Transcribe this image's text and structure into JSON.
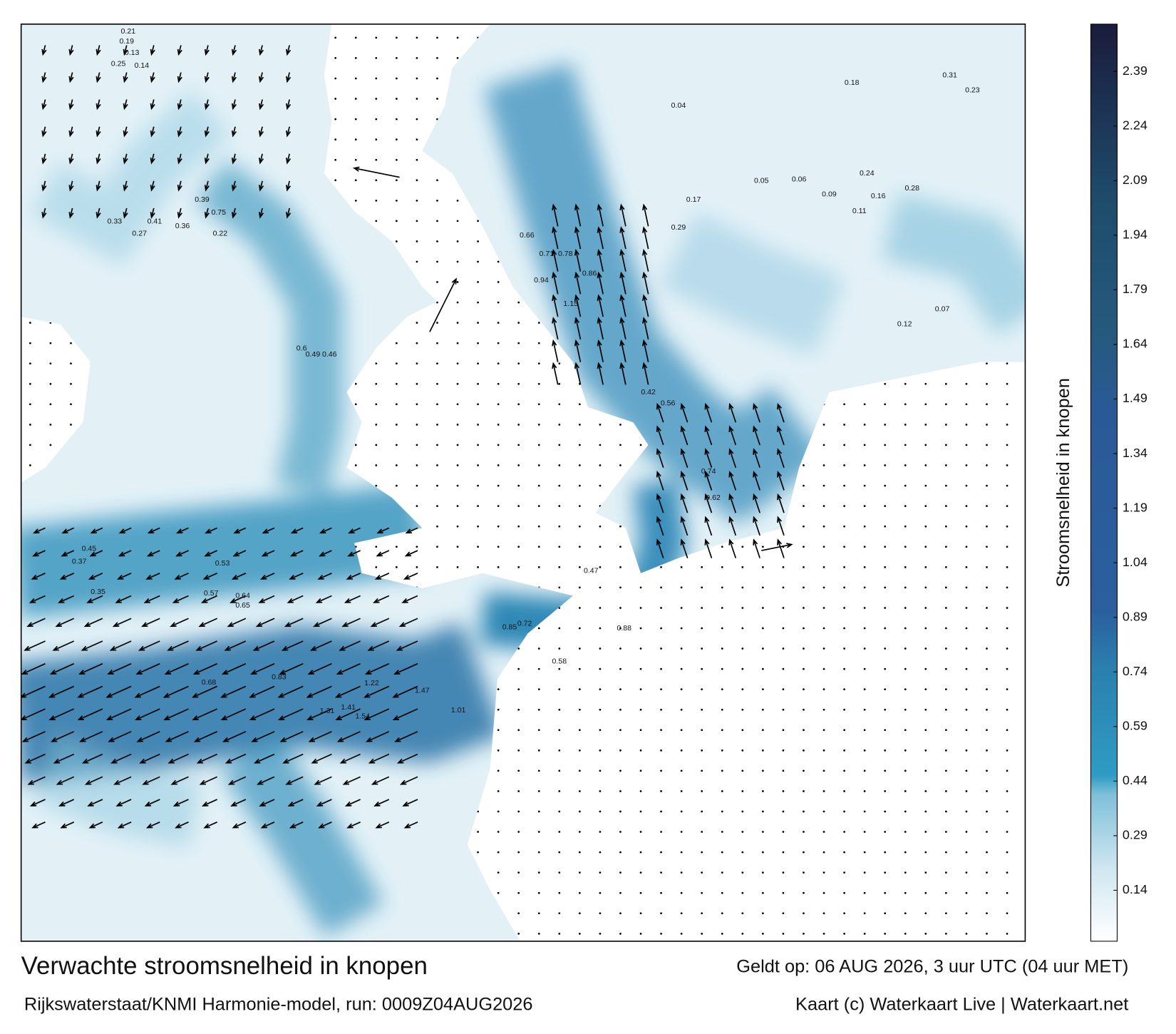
{
  "map": {
    "title": "Verwachte stroomsnelheid in knopen",
    "subtitle": "Rijkswaterstaat/KNMI Harmonie-model, run: 0009Z04AUG2026",
    "valid_time": "Geldt op: 06 AUG 2026, 3 uur UTC (04 uur MET)",
    "credit": "Kaart (c) Waterkaart Live | Waterkaart.net",
    "colorbar": {
      "label": "Stroomsnelheid in knopen",
      "lim": [
        0,
        2.52
      ],
      "ticks": [
        0.14,
        0.29,
        0.44,
        0.59,
        0.74,
        0.89,
        1.04,
        1.19,
        1.34,
        1.49,
        1.64,
        1.79,
        1.94,
        2.09,
        2.24,
        2.39
      ]
    },
    "speed_labels": [
      0.21,
      0.19,
      0.13,
      0.25,
      0.14,
      0.41,
      0.33,
      0.36,
      0.27,
      0.22,
      0.39,
      0.75,
      0.6,
      0.49,
      0.46,
      0.45,
      0.37,
      0.35,
      0.53,
      0.57,
      0.64,
      0.65,
      0.68,
      0.83,
      1.31,
      1.41,
      1.54,
      1.22,
      1.47,
      1.01,
      0.88,
      0.85,
      0.72,
      0.58,
      0.47,
      0.66,
      0.71,
      0.78,
      0.86,
      0.94,
      1.15,
      0.74,
      0.62,
      0.56,
      0.42,
      0.29,
      0.17,
      0.11,
      0.09,
      0.06,
      0.05,
      0.04,
      0.07,
      0.12,
      0.16,
      0.18,
      0.23,
      0.24,
      0.28,
      0.31
    ]
  }
}
